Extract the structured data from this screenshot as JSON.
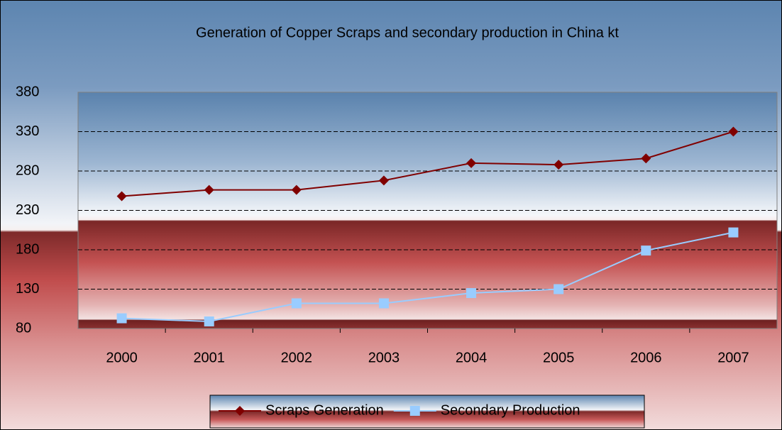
{
  "chart_data": {
    "type": "line",
    "title": "Generation of Copper Scraps and secondary production in China kt",
    "categories": [
      "2000",
      "2001",
      "2002",
      "2003",
      "2004",
      "2005",
      "2006",
      "2007"
    ],
    "series": [
      {
        "name": "Scraps Generation",
        "color": "#800000",
        "marker": "diamond",
        "values": [
          248,
          256,
          256,
          268,
          290,
          288,
          296,
          330
        ]
      },
      {
        "name": "Secondary Production",
        "color": "#99ccff",
        "marker": "square",
        "values": [
          93,
          89,
          112,
          112,
          125,
          130,
          179,
          202
        ]
      }
    ],
    "ylim": [
      80,
      380
    ],
    "yticks": [
      80,
      130,
      180,
      230,
      280,
      330,
      380
    ],
    "grid": true,
    "legend": "bottom"
  }
}
